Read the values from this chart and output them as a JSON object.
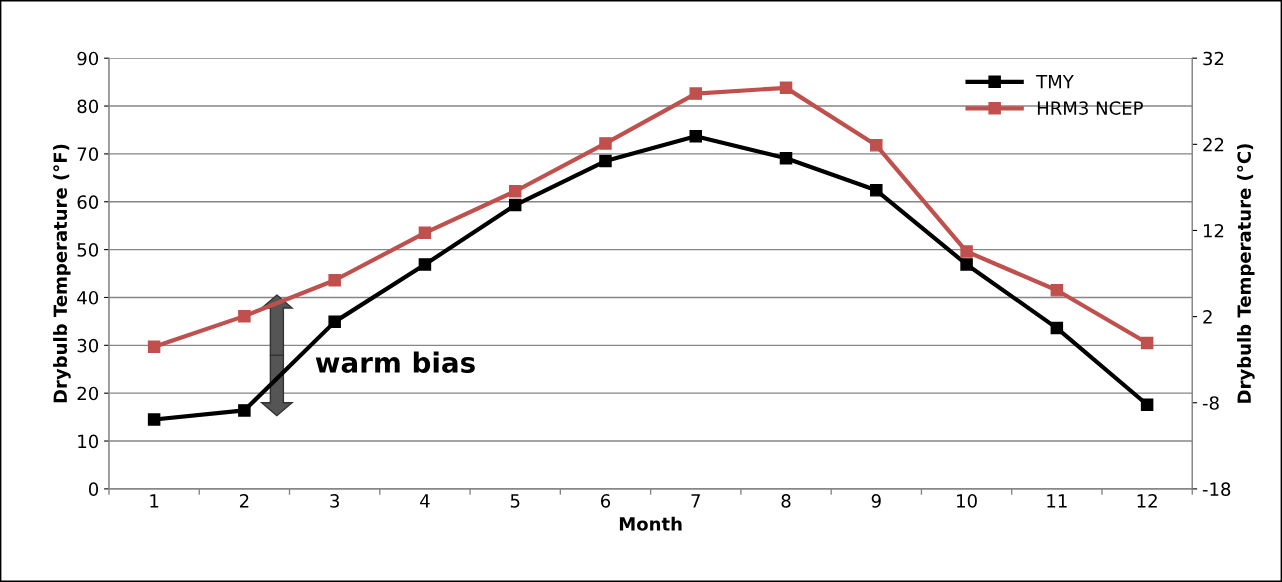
{
  "chart_data": {
    "type": "line",
    "xlabel": "Month",
    "ylabel": "Drybulb Temperature (°F)",
    "y2label": "Drybulb Temperature (°C)",
    "categories": [
      "1",
      "2",
      "3",
      "4",
      "5",
      "6",
      "7",
      "8",
      "9",
      "10",
      "11",
      "12"
    ],
    "series": [
      {
        "name": "TMY",
        "color": "#000000",
        "values": [
          14.5,
          16.4,
          34.9,
          46.9,
          59.3,
          68.5,
          73.7,
          69.1,
          62.4,
          46.9,
          33.6,
          17.6
        ]
      },
      {
        "name": "HRM3 NCEP",
        "color": "#c0504d",
        "values": [
          29.7,
          36.1,
          43.6,
          53.5,
          62.2,
          72.2,
          82.6,
          83.8,
          71.8,
          49.6,
          41.5,
          30.5
        ]
      }
    ],
    "ylim": [
      0,
      90
    ],
    "yticks": [
      0,
      10,
      20,
      30,
      40,
      50,
      60,
      70,
      80,
      90
    ],
    "y2lim": [
      -18,
      32
    ],
    "y2ticks": [
      -18,
      -8,
      2,
      12,
      22,
      32
    ],
    "grid": "y",
    "legend": "top right",
    "marker": "square",
    "line_style": "solid",
    "annotations": [
      "warm bias"
    ]
  }
}
